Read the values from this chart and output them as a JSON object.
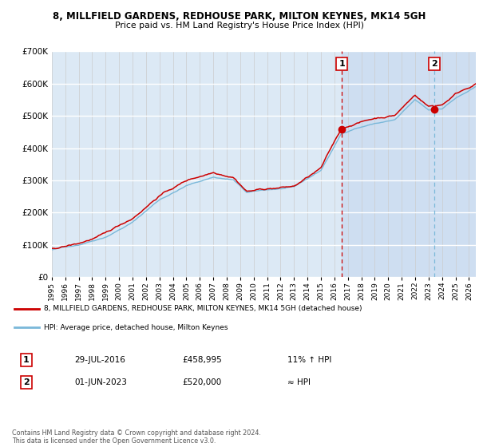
{
  "title1": "8, MILLFIELD GARDENS, REDHOUSE PARK, MILTON KEYNES, MK14 5GH",
  "title2": "Price paid vs. HM Land Registry's House Price Index (HPI)",
  "background_color": "#ffffff",
  "plot_bg": "#dce9f5",
  "legend_line1": "8, MILLFIELD GARDENS, REDHOUSE PARK, MILTON KEYNES, MK14 5GH (detached house)",
  "legend_line2": "HPI: Average price, detached house, Milton Keynes",
  "sale1_date": "29-JUL-2016",
  "sale1_price": "£458,995",
  "sale1_info": "11% ↑ HPI",
  "sale2_date": "01-JUN-2023",
  "sale2_price": "£520,000",
  "sale2_info": "≈ HPI",
  "footer": "Contains HM Land Registry data © Crown copyright and database right 2024.\nThis data is licensed under the Open Government Licence v3.0.",
  "sale1_year": 2016.57,
  "sale2_year": 2023.42,
  "sale1_value": 458995,
  "sale2_value": 520000,
  "ylim": [
    0,
    700000
  ],
  "xlim_start": 1995.0,
  "xlim_end": 2026.5
}
